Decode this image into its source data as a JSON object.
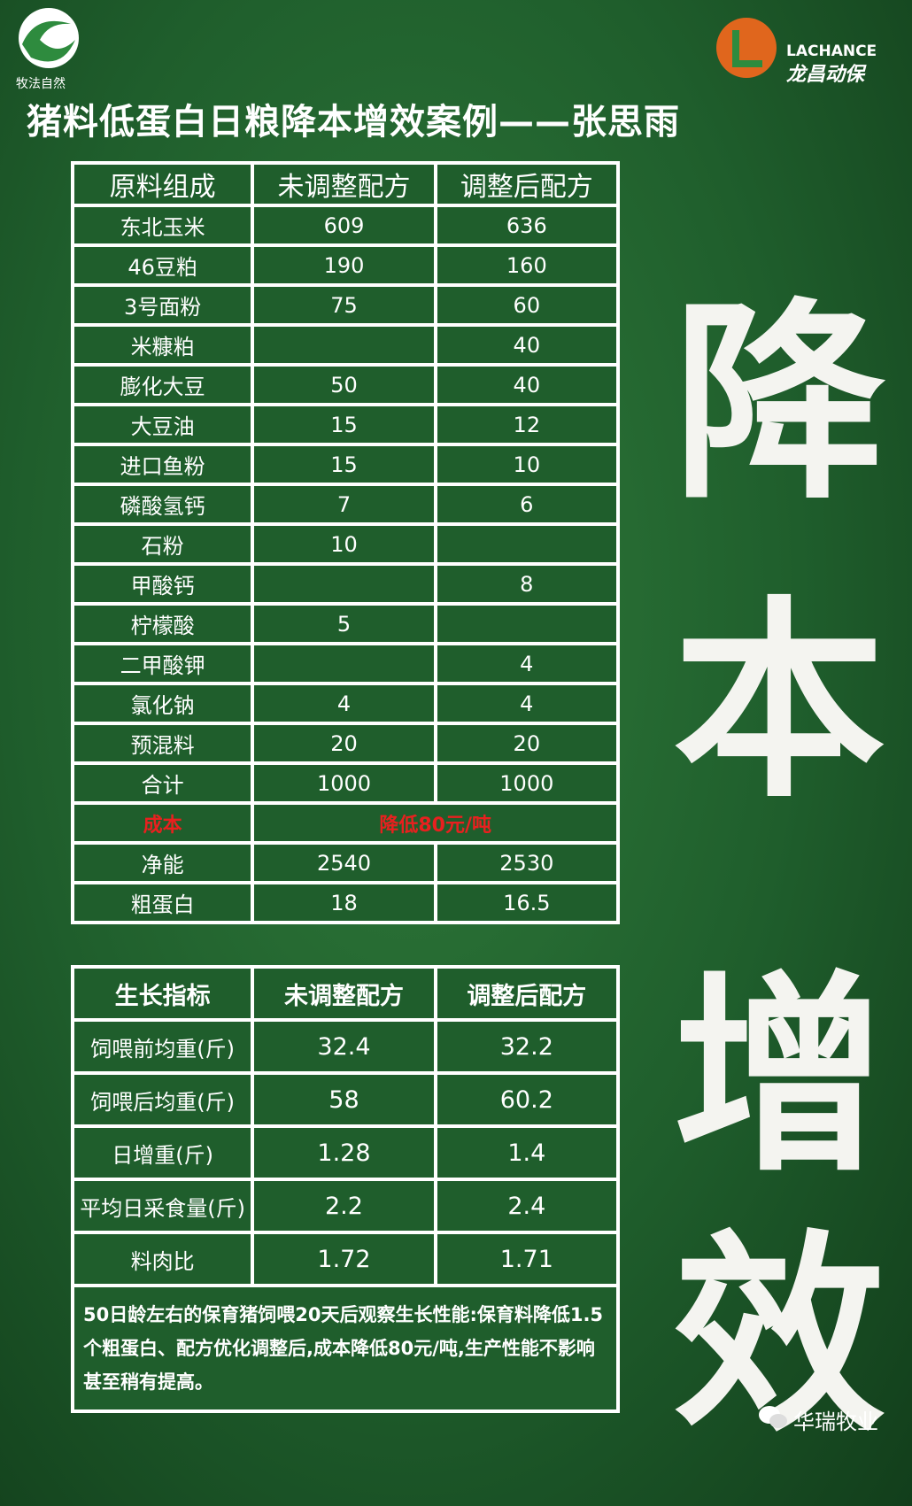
{
  "logo_left": {
    "text": "牧法自然"
  },
  "logo_right": {
    "brand": "LACHANCE",
    "name": "龙昌动保"
  },
  "title": "猪料低蛋白日粮降本增效案例——张思雨",
  "table1": {
    "header": [
      "原料组成",
      "未调整配方",
      "调整后配方"
    ],
    "rows": [
      [
        "东北玉米",
        609,
        636
      ],
      [
        "46豆粕",
        190,
        160
      ],
      [
        "3号面粉",
        75,
        60
      ],
      [
        "米糠粕",
        null,
        40
      ],
      [
        "膨化大豆",
        50,
        40
      ],
      [
        "大豆油",
        15,
        12
      ],
      [
        "进口鱼粉",
        15,
        10
      ],
      [
        "磷酸氢钙",
        7,
        6
      ],
      [
        "石粉",
        10,
        null
      ],
      [
        "甲酸钙",
        null,
        8
      ],
      [
        "柠檬酸",
        5,
        null
      ],
      [
        "二甲酸钾",
        null,
        4
      ],
      [
        "氯化钠",
        4,
        4
      ],
      [
        "预混料",
        20,
        20
      ],
      [
        "合计",
        1000,
        1000
      ],
      [
        "成本",
        "降低80元/吨"
      ],
      [
        "净能",
        2540,
        2530
      ],
      [
        "粗蛋白",
        18,
        16.5
      ]
    ]
  },
  "table2": {
    "header": [
      "生长指标",
      "未调整配方",
      "调整后配方"
    ],
    "rows": [
      [
        "饲喂前均重(斤)",
        32.4,
        32.2
      ],
      [
        "饲喂后均重(斤)",
        58,
        60.2
      ],
      [
        "日增重(斤)",
        1.28,
        1.4
      ],
      [
        "平均日采食量(斤)",
        2.2,
        2.4
      ],
      [
        "料肉比",
        1.72,
        1.71
      ]
    ],
    "note": "50日龄左右的保育猪饲喂20天后观察生长性能:保育料降低1.5个粗蛋白、配方优化调整后,成本降低80元/吨,生产性能不影响甚至稍有提高。"
  },
  "slogan": [
    "降",
    "本",
    "增",
    "效"
  ],
  "footer": "华瑞牧业"
}
